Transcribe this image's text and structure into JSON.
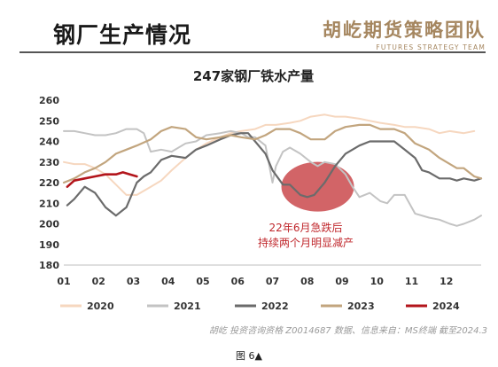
{
  "header": {
    "title": "钢厂生产情况",
    "brand_cn": "胡屹期货策略团队",
    "brand_en": "FUTURES STRATEGY TEAM"
  },
  "footer": {
    "source": "胡屹 投资咨询资格 Z0014687  数据、信息来自：MS终端   截至2024.3",
    "caption": "图 6▲"
  },
  "annotation": {
    "line1": "22年6月急跌后",
    "line2": "持续两个月明显减产",
    "color": "#c0282d"
  },
  "chart_data": {
    "type": "line",
    "title": "247家钢厂铁水产量",
    "x": [
      "01",
      "02",
      "03",
      "04",
      "05",
      "06",
      "07",
      "08",
      "09",
      "10",
      "11",
      "12"
    ],
    "ylim": [
      180,
      260
    ],
    "yticks": [
      180,
      190,
      200,
      210,
      220,
      230,
      240,
      250,
      260
    ],
    "grid": false,
    "legend": "bottom",
    "series": [
      {
        "name": "2020",
        "color": "#f6d7bf",
        "width": 2,
        "points": [
          [
            1.0,
            230
          ],
          [
            1.3,
            229
          ],
          [
            1.6,
            229
          ],
          [
            1.9,
            227
          ],
          [
            2.2,
            224
          ],
          [
            2.5,
            219
          ],
          [
            2.8,
            214
          ],
          [
            3.1,
            214
          ],
          [
            3.5,
            218
          ],
          [
            3.8,
            221
          ],
          [
            4.1,
            226
          ],
          [
            4.5,
            232
          ],
          [
            4.8,
            236
          ],
          [
            5.1,
            239
          ],
          [
            5.5,
            242
          ],
          [
            5.8,
            244
          ],
          [
            6.1,
            245
          ],
          [
            6.5,
            246
          ],
          [
            6.8,
            248
          ],
          [
            7.1,
            248
          ],
          [
            7.5,
            249
          ],
          [
            7.8,
            250
          ],
          [
            8.1,
            252
          ],
          [
            8.5,
            253
          ],
          [
            8.8,
            252
          ],
          [
            9.1,
            252
          ],
          [
            9.5,
            251
          ],
          [
            9.8,
            250
          ],
          [
            10.1,
            249
          ],
          [
            10.5,
            248
          ],
          [
            10.8,
            247
          ],
          [
            11.1,
            247
          ],
          [
            11.5,
            246
          ],
          [
            11.8,
            244
          ],
          [
            12.1,
            245
          ],
          [
            12.5,
            244
          ],
          [
            12.8,
            245
          ]
        ]
      },
      {
        "name": "2021",
        "color": "#c3c3c3",
        "width": 2,
        "points": [
          [
            1.0,
            245
          ],
          [
            1.3,
            245
          ],
          [
            1.6,
            244
          ],
          [
            1.9,
            243
          ],
          [
            2.2,
            243
          ],
          [
            2.5,
            244
          ],
          [
            2.8,
            246
          ],
          [
            3.1,
            246
          ],
          [
            3.3,
            244
          ],
          [
            3.5,
            235
          ],
          [
            3.8,
            236
          ],
          [
            4.1,
            235
          ],
          [
            4.5,
            239
          ],
          [
            4.8,
            240
          ],
          [
            5.1,
            243
          ],
          [
            5.5,
            244
          ],
          [
            5.8,
            245
          ],
          [
            6.1,
            244
          ],
          [
            6.3,
            242
          ],
          [
            6.5,
            242
          ],
          [
            6.8,
            238
          ],
          [
            7.0,
            220
          ],
          [
            7.1,
            228
          ],
          [
            7.3,
            235
          ],
          [
            7.5,
            237
          ],
          [
            7.8,
            234
          ],
          [
            8.1,
            230
          ],
          [
            8.3,
            228
          ],
          [
            8.5,
            230
          ],
          [
            8.8,
            229
          ],
          [
            9.1,
            224
          ],
          [
            9.3,
            218
          ],
          [
            9.5,
            213
          ],
          [
            9.8,
            215
          ],
          [
            10.1,
            211
          ],
          [
            10.3,
            210
          ],
          [
            10.5,
            214
          ],
          [
            10.8,
            214
          ],
          [
            11.1,
            205
          ],
          [
            11.5,
            203
          ],
          [
            11.8,
            202
          ],
          [
            12.1,
            200
          ],
          [
            12.3,
            199
          ],
          [
            12.5,
            200
          ],
          [
            12.8,
            202
          ],
          [
            13.0,
            204
          ]
        ]
      },
      {
        "name": "2022",
        "color": "#6b6b6b",
        "width": 2.2,
        "points": [
          [
            1.1,
            209
          ],
          [
            1.3,
            212
          ],
          [
            1.6,
            218
          ],
          [
            1.9,
            215
          ],
          [
            2.2,
            208
          ],
          [
            2.5,
            204
          ],
          [
            2.8,
            208
          ],
          [
            3.1,
            220
          ],
          [
            3.3,
            223
          ],
          [
            3.5,
            225
          ],
          [
            3.8,
            231
          ],
          [
            4.1,
            233
          ],
          [
            4.5,
            232
          ],
          [
            4.8,
            236
          ],
          [
            5.1,
            238
          ],
          [
            5.5,
            241
          ],
          [
            5.8,
            243
          ],
          [
            6.1,
            244
          ],
          [
            6.3,
            244
          ],
          [
            6.5,
            240
          ],
          [
            6.8,
            234
          ],
          [
            7.0,
            226
          ],
          [
            7.3,
            219
          ],
          [
            7.5,
            219
          ],
          [
            7.8,
            214
          ],
          [
            8.0,
            213
          ],
          [
            8.2,
            214
          ],
          [
            8.5,
            220
          ],
          [
            8.8,
            228
          ],
          [
            9.1,
            234
          ],
          [
            9.5,
            238
          ],
          [
            9.8,
            240
          ],
          [
            10.1,
            240
          ],
          [
            10.5,
            240
          ],
          [
            10.8,
            236
          ],
          [
            11.1,
            232
          ],
          [
            11.3,
            226
          ],
          [
            11.5,
            225
          ],
          [
            11.8,
            222
          ],
          [
            12.1,
            222
          ],
          [
            12.3,
            221
          ],
          [
            12.5,
            222
          ],
          [
            12.8,
            221
          ],
          [
            13.0,
            222
          ]
        ]
      },
      {
        "name": "2023",
        "color": "#c2a57e",
        "width": 2.2,
        "points": [
          [
            1.0,
            220
          ],
          [
            1.3,
            222
          ],
          [
            1.6,
            225
          ],
          [
            1.9,
            227
          ],
          [
            2.2,
            230
          ],
          [
            2.5,
            234
          ],
          [
            2.8,
            236
          ],
          [
            3.1,
            238
          ],
          [
            3.5,
            241
          ],
          [
            3.8,
            245
          ],
          [
            4.1,
            247
          ],
          [
            4.5,
            246
          ],
          [
            4.8,
            242
          ],
          [
            5.1,
            241
          ],
          [
            5.5,
            242
          ],
          [
            5.8,
            243
          ],
          [
            6.1,
            242
          ],
          [
            6.5,
            241
          ],
          [
            6.8,
            243
          ],
          [
            7.1,
            246
          ],
          [
            7.5,
            246
          ],
          [
            7.8,
            244
          ],
          [
            8.1,
            241
          ],
          [
            8.5,
            241
          ],
          [
            8.8,
            245
          ],
          [
            9.1,
            247
          ],
          [
            9.5,
            248
          ],
          [
            9.8,
            248
          ],
          [
            10.1,
            246
          ],
          [
            10.5,
            246
          ],
          [
            10.8,
            244
          ],
          [
            11.1,
            239
          ],
          [
            11.5,
            236
          ],
          [
            11.8,
            232
          ],
          [
            12.1,
            229
          ],
          [
            12.3,
            227
          ],
          [
            12.5,
            227
          ],
          [
            12.8,
            223
          ],
          [
            13.0,
            222
          ]
        ]
      },
      {
        "name": "2024",
        "color": "#b3151b",
        "width": 2.6,
        "points": [
          [
            1.1,
            218
          ],
          [
            1.3,
            221
          ],
          [
            1.6,
            222
          ],
          [
            1.9,
            223
          ],
          [
            2.2,
            224
          ],
          [
            2.5,
            224
          ],
          [
            2.7,
            225
          ],
          [
            2.9,
            224
          ],
          [
            3.1,
            223
          ]
        ]
      }
    ]
  }
}
